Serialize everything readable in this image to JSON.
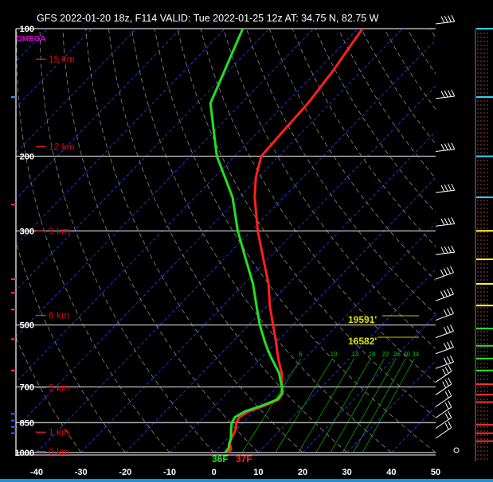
{
  "title": "GFS 2022-01-20 18z, F114  VALID: Tue 2022-01-25 12z  AT: 34.75 N, 82.75 W",
  "omega_label": "OMEGA",
  "colors": {
    "temperature": "#ff2020",
    "dewpoint": "#22e022",
    "isobar": "#b0b0b0",
    "dry_adiabat": "#8a8a8a",
    "isotherm": "#3030c8",
    "mixing_ratio": "#00a000",
    "height_label": "#ff2020",
    "surface_dewpoint_label": "#22e022",
    "surface_temp_label": "#ff2020"
  },
  "chart_data": {
    "type": "line",
    "title": "",
    "xlabel": "",
    "ylabel": "",
    "xlim": [
      -40,
      50
    ],
    "plim": [
      1000,
      100
    ],
    "x_ticks": [
      "-40",
      "-30",
      "-20",
      "-10",
      "0",
      "10",
      "20",
      "30",
      "40",
      "50"
    ],
    "pressure_levels": [
      {
        "p": 1000,
        "label": "1000"
      },
      {
        "p": 850,
        "label": "850"
      },
      {
        "p": 700,
        "label": "700"
      },
      {
        "p": 500,
        "label": "500"
      },
      {
        "p": 300,
        "label": "300"
      },
      {
        "p": 200,
        "label": "200"
      },
      {
        "p": 100,
        "label": "100"
      }
    ],
    "height_labels": [
      {
        "p": 995,
        "label": "0 km"
      },
      {
        "p": 895,
        "label": "1 km"
      },
      {
        "p": 703,
        "label": "3 km"
      },
      {
        "p": 475,
        "label": "6 km"
      },
      {
        "p": 300,
        "label": "9 km"
      },
      {
        "p": 190,
        "label": "12 km"
      },
      {
        "p": 118,
        "label": "15 km"
      }
    ],
    "mixing_ratio_labels": [
      "6",
      "10",
      "14",
      "18",
      "22",
      "26",
      "30",
      "34"
    ],
    "height_markers": [
      "19591'",
      "16582'"
    ],
    "surface_labels": {
      "dewpoint": "36F",
      "temperature": "37F"
    },
    "series": [
      {
        "name": "",
        "points": [
          {
            "p": 1000,
            "t": 3.0
          },
          {
            "p": 985,
            "t": 3.2
          },
          {
            "p": 975,
            "t": 2.8
          },
          {
            "p": 950,
            "t": 1.5
          },
          {
            "p": 925,
            "t": 0.8
          },
          {
            "p": 900,
            "t": 0.3
          },
          {
            "p": 875,
            "t": -0.4
          },
          {
            "p": 850,
            "t": -1.5
          },
          {
            "p": 825,
            "t": -2.0
          },
          {
            "p": 800,
            "t": -1.2
          },
          {
            "p": 775,
            "t": 1.2
          },
          {
            "p": 750,
            "t": 3.0
          },
          {
            "p": 725,
            "t": 2.6
          },
          {
            "p": 700,
            "t": 1.0
          },
          {
            "p": 675,
            "t": -0.5
          },
          {
            "p": 650,
            "t": -2.0
          },
          {
            "p": 625,
            "t": -4.0
          },
          {
            "p": 600,
            "t": -6.0
          },
          {
            "p": 575,
            "t": -8.0
          },
          {
            "p": 550,
            "t": -10.0
          },
          {
            "p": 500,
            "t": -14.5
          },
          {
            "p": 450,
            "t": -19.5
          },
          {
            "p": 400,
            "t": -24.5
          },
          {
            "p": 350,
            "t": -31.0
          },
          {
            "p": 300,
            "t": -38.5
          },
          {
            "p": 250,
            "t": -46.5
          },
          {
            "p": 225,
            "t": -50.5
          },
          {
            "p": 200,
            "t": -54.0
          },
          {
            "p": 175,
            "t": -54.5
          },
          {
            "p": 150,
            "t": -55.0
          },
          {
            "p": 125,
            "t": -56.5
          },
          {
            "p": 100,
            "t": -59.0
          }
        ]
      },
      {
        "name": "",
        "points": [
          {
            "p": 1000,
            "t": 2.5
          },
          {
            "p": 975,
            "t": 2.3
          },
          {
            "p": 950,
            "t": 1.4
          },
          {
            "p": 925,
            "t": 0.7
          },
          {
            "p": 900,
            "t": -0.4
          },
          {
            "p": 875,
            "t": -1.5
          },
          {
            "p": 850,
            "t": -2.5
          },
          {
            "p": 825,
            "t": -3.0
          },
          {
            "p": 800,
            "t": -2.0
          },
          {
            "p": 775,
            "t": 0.6
          },
          {
            "p": 750,
            "t": 2.7
          },
          {
            "p": 725,
            "t": 2.4
          },
          {
            "p": 700,
            "t": 1.0
          },
          {
            "p": 675,
            "t": -0.8
          },
          {
            "p": 650,
            "t": -2.6
          },
          {
            "p": 625,
            "t": -5.0
          },
          {
            "p": 600,
            "t": -7.5
          },
          {
            "p": 575,
            "t": -10.0
          },
          {
            "p": 550,
            "t": -12.5
          },
          {
            "p": 500,
            "t": -17.5
          },
          {
            "p": 450,
            "t": -22.5
          },
          {
            "p": 400,
            "t": -28.0
          },
          {
            "p": 350,
            "t": -35.0
          },
          {
            "p": 300,
            "t": -43.0
          },
          {
            "p": 250,
            "t": -51.5
          },
          {
            "p": 200,
            "t": -64.0
          },
          {
            "p": 150,
            "t": -77.0
          },
          {
            "p": 100,
            "t": -86.0
          }
        ]
      }
    ]
  }
}
